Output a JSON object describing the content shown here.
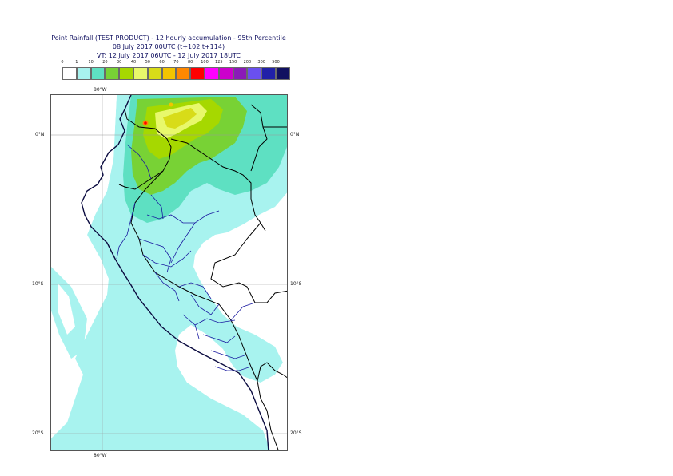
{
  "title": {
    "line1": "Point Rainfall (TEST PRODUCT) - 12 hourly accumulation - 95th Percentile",
    "line2": "08 July 2017 00UTC (t+102,t+114)",
    "line3": "VT: 12 July 2017 06UTC - 12 July 2017 18UTC"
  },
  "legend": {
    "thresholds": [
      "0",
      "1",
      "10",
      "20",
      "30",
      "40",
      "50",
      "60",
      "70",
      "80",
      "100",
      "125",
      "150",
      "200",
      "300",
      "500"
    ],
    "colors": [
      "#ffffff",
      "#a8f3ef",
      "#5ee0c2",
      "#78d235",
      "#a6d800",
      "#e8f86b",
      "#d8dc18",
      "#f2c400",
      "#ff8800",
      "#ff0000",
      "#ff00ff",
      "#cc00cc",
      "#8a1ab8",
      "#6a50f0",
      "#2020a8",
      "#101060"
    ]
  },
  "map": {
    "lon_label_top": "80°W",
    "lon_label_bottom": "80°W",
    "lat_labels_left": [
      "0°N",
      "10°S",
      "20°S"
    ],
    "lat_labels_right": [
      "0°N",
      "10°S",
      "20°S"
    ],
    "colors": {
      "country_border": "#000000",
      "region_border": "#1a1aa0",
      "coast": "#0b0b40",
      "grid": "#9a9a9a"
    }
  }
}
